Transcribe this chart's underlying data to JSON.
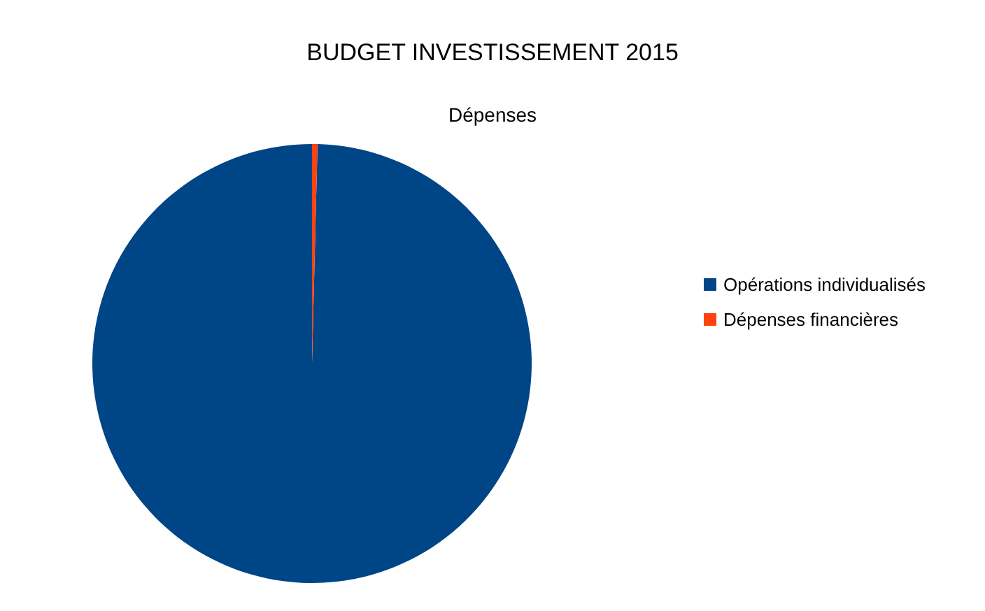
{
  "chart_data": {
    "type": "pie",
    "title": "BUDGET INVESTISSEMENT 2015",
    "subtitle": "Dépenses",
    "categories": [
      "Opérations individualisés",
      "Dépenses financières"
    ],
    "values": [
      99.6,
      0.4
    ],
    "colors": [
      "#004586",
      "#ff420e"
    ],
    "legend": "right"
  }
}
